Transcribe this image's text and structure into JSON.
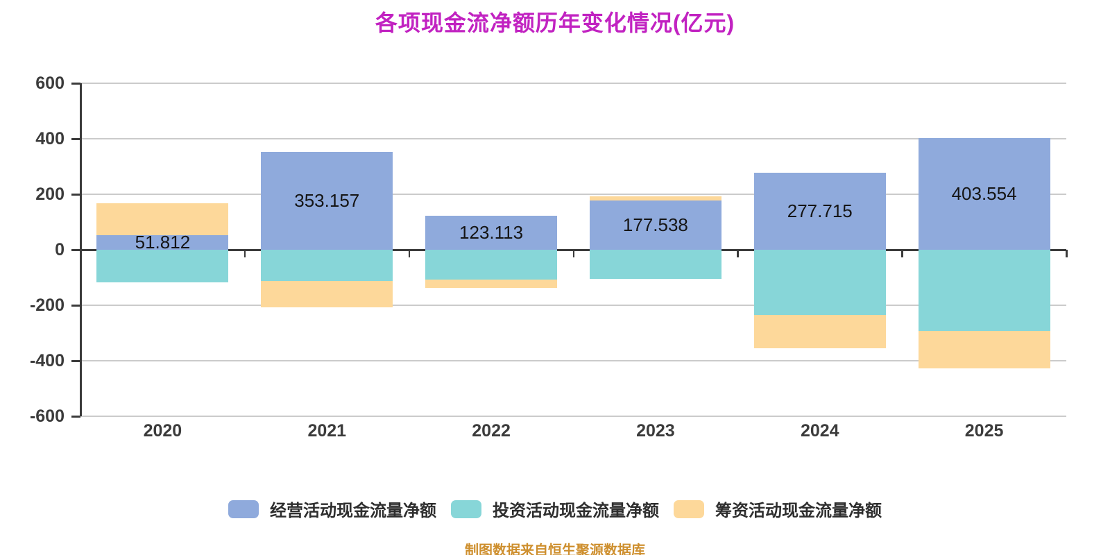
{
  "title": "各项现金流净额历年变化情况(亿元)",
  "source_note": "制图数据来自恒生聚源数据库",
  "colors": {
    "title": "#C122C1",
    "background": "#FFFFFF",
    "gridline": "#CBCBCB",
    "axis": "#3B3B3B",
    "bar_label": "#151515",
    "source_note": "#CE8F2E",
    "operating_blue": "#8FAADC",
    "investing_teal": "#87D6D8",
    "financing_orange": "#FDD89A"
  },
  "chart_data": {
    "type": "bar",
    "stacked": true,
    "title": "各项现金流净额历年变化情况(亿元)",
    "xlabel": "",
    "ylabel": "",
    "categories": [
      "2020",
      "2021",
      "2022",
      "2023",
      "2024",
      "2025"
    ],
    "series": [
      {
        "name": "经营活动现金流量净额",
        "color": "#8FAADC",
        "values": [
          51.812,
          353.157,
          123.113,
          177.538,
          277.715,
          403.554
        ]
      },
      {
        "name": "投资活动现金流量净额",
        "color": "#87D6D8",
        "values": [
          -118.5,
          -112.5,
          -107.5,
          -104,
          -234,
          -292
        ]
      },
      {
        "name": "筹资活动现金流量净额",
        "color": "#FDD89A",
        "values": [
          116,
          -96,
          -30,
          14.5,
          -120.5,
          -135.5
        ]
      }
    ],
    "bar_labels": [
      "51.812",
      "353.157",
      "123.113",
      "177.538",
      "277.715",
      "403.554"
    ],
    "ylim": [
      -600,
      600
    ],
    "yticks": [
      600,
      400,
      200,
      0,
      -200,
      -400,
      -600
    ],
    "grid": true,
    "legend_position": "bottom"
  }
}
